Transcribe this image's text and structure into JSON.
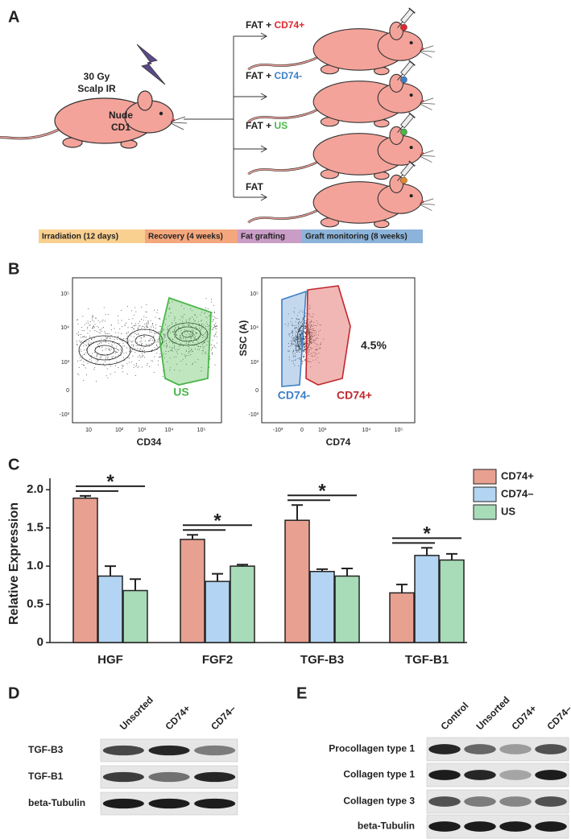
{
  "panels": [
    "A",
    "B",
    "C",
    "D",
    "E"
  ],
  "diagram": {
    "dose": "30 Gy",
    "site": "Scalp IR",
    "strain": [
      "Nude",
      "CD1"
    ],
    "groups": [
      {
        "prefix": "FAT + ",
        "cell": "CD74+",
        "color": "#e0282e"
      },
      {
        "prefix": "FAT + ",
        "cell": "CD74-",
        "color": "#3d7fc4"
      },
      {
        "prefix": "FAT + ",
        "cell": "US",
        "color": "#49b649"
      },
      {
        "prefix": "FAT",
        "cell": "",
        "color": "#e08a2a"
      }
    ],
    "timeline": [
      {
        "label": "Irradiation (12 days)",
        "color": "#f9d08f"
      },
      {
        "label": "Recovery (4 weeks)",
        "color": "#f4a77c"
      },
      {
        "label": "Fat grafting",
        "color": "#c99dc6"
      },
      {
        "label": "Graft monitoring (8 weeks)",
        "color": "#8cb3d9"
      }
    ]
  },
  "flow": {
    "yticks": [
      "10⁵",
      "10⁴",
      "10³",
      "0",
      "-10³"
    ],
    "xticks1": [
      "10",
      "10²",
      "10³",
      "10⁴",
      "10⁵"
    ],
    "xticks2": [
      "-10³",
      "0",
      "10³",
      "10⁴",
      "10⁵"
    ],
    "xlabel1": "CD34",
    "xlabel2": "CD74",
    "ylabel2": "SSC (A)",
    "gate1": "US",
    "gate_neg": "CD74-",
    "gate_pos": "CD74+",
    "percent": "4.5%"
  },
  "chart_data": {
    "type": "bar",
    "ylabel": "Relative Expression",
    "categories": [
      "HGF",
      "FGF2",
      "TGF-B3",
      "TGF-B1"
    ],
    "series": [
      {
        "name": "CD74+",
        "color": "#e8a091",
        "values": [
          1.89,
          1.35,
          1.6,
          0.65
        ],
        "error": [
          0.03,
          0.06,
          0.2,
          0.11
        ]
      },
      {
        "name": "CD74–",
        "color": "#b3d4f2",
        "values": [
          0.87,
          0.8,
          0.93,
          1.14
        ],
        "error": [
          0.13,
          0.1,
          0.03,
          0.1
        ]
      },
      {
        "name": "US",
        "color": "#a8dbb8",
        "values": [
          0.68,
          1.0,
          0.87,
          1.08
        ],
        "error": [
          0.15,
          0.02,
          0.1,
          0.08
        ]
      }
    ],
    "significance": [
      "*",
      "*",
      "*",
      "*"
    ],
    "ylim": [
      0,
      2.15
    ],
    "yticks": [
      0,
      0.5,
      {
        "value": 1,
        "label": "1.0"
      },
      1.5,
      {
        "value": 2,
        "label": "2.0"
      }
    ],
    "legend": "top-right"
  },
  "blot_d": {
    "columns": [
      "Unsorted",
      "CD74+",
      "CD74–"
    ],
    "rows": [
      "TGF-B3",
      "TGF-B1",
      "beta-Tubulin"
    ]
  },
  "blot_e": {
    "columns": [
      "Control",
      "Unsorted",
      "CD74+",
      "CD74–"
    ],
    "rows": [
      "Procollagen type 1",
      "Collagen type 1",
      "Collagen type 3",
      "beta-Tubulin"
    ]
  }
}
